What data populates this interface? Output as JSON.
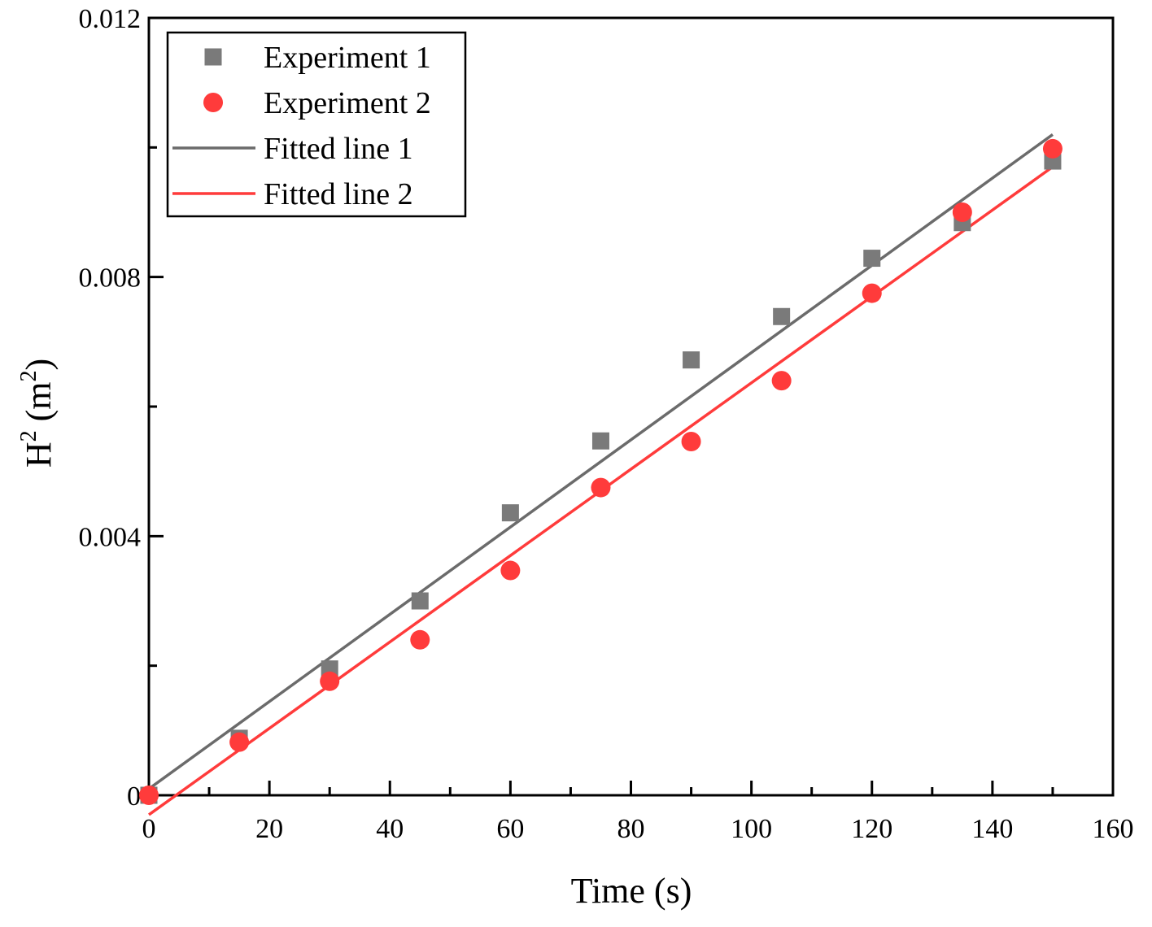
{
  "chart_data": {
    "type": "scatter",
    "title": "",
    "xlabel": "Time (s)",
    "ylabel_main": "H",
    "ylabel_sup1": "2",
    "ylabel_mid": " (m",
    "ylabel_sup2": "2",
    "ylabel_end": ")",
    "xlim": [
      0,
      160
    ],
    "ylim": [
      0,
      0.012
    ],
    "x_ticks": [
      0,
      20,
      40,
      60,
      80,
      100,
      120,
      140,
      160
    ],
    "x_tick_labels": [
      "0",
      "20",
      "40",
      "60",
      "80",
      "100",
      "120",
      "140",
      "160"
    ],
    "y_ticks": [
      0,
      0.004,
      0.008,
      0.012
    ],
    "y_tick_labels": [
      "0",
      "0.004",
      "0.008",
      "0.012"
    ],
    "legend_position": "top-left",
    "series": [
      {
        "name": "Experiment 1",
        "kind": "scatter",
        "marker": "square",
        "color": "#7a7a7a",
        "x": [
          0,
          15,
          30,
          45,
          60,
          75,
          90,
          105,
          120,
          135,
          150
        ],
        "y": [
          0,
          0.00088,
          0.00195,
          0.003,
          0.00436,
          0.00547,
          0.00672,
          0.00739,
          0.00829,
          0.00884,
          0.00979
        ]
      },
      {
        "name": "Experiment 2",
        "kind": "scatter",
        "marker": "circle",
        "color": "#ff3b3b",
        "x": [
          0,
          15,
          30,
          45,
          60,
          75,
          90,
          105,
          120,
          135,
          150
        ],
        "y": [
          0,
          0.00082,
          0.00176,
          0.0024,
          0.00347,
          0.00475,
          0.00546,
          0.0064,
          0.00775,
          0.009,
          0.00998
        ]
      },
      {
        "name": "Fitted line 1",
        "kind": "line",
        "color": "#6b6b6b",
        "x": [
          0,
          150
        ],
        "y": [
          0.0001,
          0.0102
        ]
      },
      {
        "name": "Fitted line 2",
        "kind": "line",
        "color": "#ff3b3b",
        "x": [
          0,
          150
        ],
        "y": [
          -0.0003,
          0.0097
        ]
      }
    ]
  }
}
